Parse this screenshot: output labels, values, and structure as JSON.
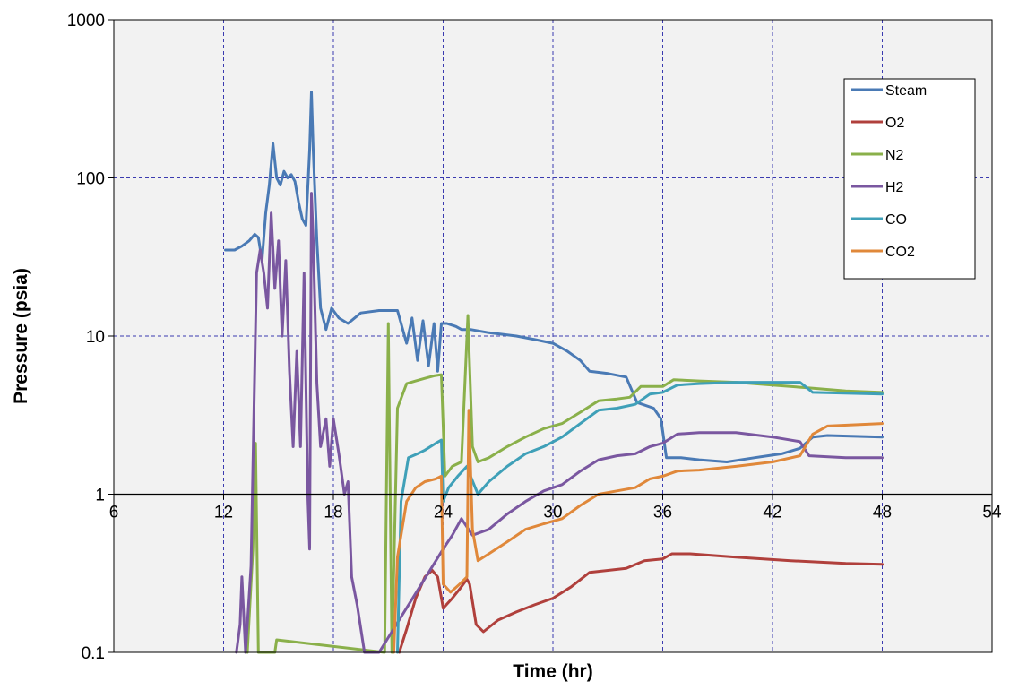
{
  "chart_data": {
    "type": "line",
    "title": "",
    "xlabel": "Time (hr)",
    "ylabel": "Pressure (psia)",
    "xlim": [
      6,
      54
    ],
    "ylim": [
      0.1,
      1000
    ],
    "yscale": "log",
    "x_ticks": [
      6,
      12,
      18,
      24,
      30,
      36,
      42,
      48,
      54
    ],
    "x_tick_labels": [
      "6",
      "12",
      "18",
      "24",
      "30",
      "36",
      "42",
      "48",
      "54"
    ],
    "y_ticks": [
      0.1,
      1,
      10,
      100,
      1000
    ],
    "y_tick_labels": [
      "0.1",
      "1",
      "10",
      "100",
      "1000"
    ],
    "grid": true,
    "x_axis_crosses_y": 1,
    "legend_position": "top-right",
    "plot_background": "#f2f2f2",
    "series": [
      {
        "name": "Steam",
        "color": "#4a7ab5",
        "points": [
          [
            12.1,
            35
          ],
          [
            12.6,
            35
          ],
          [
            13.0,
            37
          ],
          [
            13.4,
            40
          ],
          [
            13.7,
            44
          ],
          [
            13.9,
            42
          ],
          [
            14.1,
            30
          ],
          [
            14.3,
            60
          ],
          [
            14.5,
            90
          ],
          [
            14.7,
            165
          ],
          [
            14.9,
            100
          ],
          [
            15.1,
            90
          ],
          [
            15.3,
            110
          ],
          [
            15.5,
            100
          ],
          [
            15.7,
            105
          ],
          [
            15.9,
            95
          ],
          [
            16.1,
            70
          ],
          [
            16.3,
            55
          ],
          [
            16.5,
            50
          ],
          [
            16.7,
            150
          ],
          [
            16.8,
            350
          ],
          [
            16.9,
            150
          ],
          [
            17.1,
            40
          ],
          [
            17.3,
            15
          ],
          [
            17.6,
            11
          ],
          [
            17.9,
            15
          ],
          [
            18.3,
            13
          ],
          [
            18.8,
            12
          ],
          [
            19.5,
            14
          ],
          [
            20.5,
            14.5
          ],
          [
            21.5,
            14.5
          ],
          [
            22.0,
            9
          ],
          [
            22.3,
            13
          ],
          [
            22.6,
            7
          ],
          [
            22.9,
            12.5
          ],
          [
            23.2,
            6.5
          ],
          [
            23.5,
            12
          ],
          [
            23.7,
            6
          ],
          [
            23.9,
            12
          ],
          [
            24.2,
            12
          ],
          [
            24.7,
            11.5
          ],
          [
            25.0,
            11
          ],
          [
            25.5,
            11
          ],
          [
            26.5,
            10.5
          ],
          [
            28,
            10
          ],
          [
            29,
            9.5
          ],
          [
            30,
            9
          ],
          [
            30.8,
            8
          ],
          [
            31.5,
            7
          ],
          [
            32,
            6
          ],
          [
            33,
            5.8
          ],
          [
            34,
            5.5
          ],
          [
            34.6,
            3.8
          ],
          [
            35.5,
            3.5
          ],
          [
            35.9,
            3
          ],
          [
            36.2,
            1.7
          ],
          [
            37,
            1.7
          ],
          [
            38,
            1.65
          ],
          [
            39.5,
            1.6
          ],
          [
            41,
            1.7
          ],
          [
            42.5,
            1.8
          ],
          [
            43.5,
            1.95
          ],
          [
            44.2,
            2.3
          ],
          [
            45,
            2.35
          ],
          [
            48,
            2.3
          ]
        ]
      },
      {
        "name": "O2",
        "color": "#b0403c",
        "points": [
          [
            21.6,
            0.1
          ],
          [
            22,
            0.14
          ],
          [
            22.5,
            0.22
          ],
          [
            23,
            0.3
          ],
          [
            23.4,
            0.33
          ],
          [
            23.7,
            0.3
          ],
          [
            24,
            0.19
          ],
          [
            24.5,
            0.22
          ],
          [
            25,
            0.26
          ],
          [
            25.3,
            0.29
          ],
          [
            25.45,
            0.27
          ],
          [
            25.8,
            0.15
          ],
          [
            26.2,
            0.135
          ],
          [
            27,
            0.16
          ],
          [
            28,
            0.18
          ],
          [
            29,
            0.2
          ],
          [
            30,
            0.22
          ],
          [
            31,
            0.26
          ],
          [
            32,
            0.32
          ],
          [
            33,
            0.33
          ],
          [
            34,
            0.34
          ],
          [
            35,
            0.38
          ],
          [
            36,
            0.39
          ],
          [
            36.5,
            0.42
          ],
          [
            37.5,
            0.42
          ],
          [
            40,
            0.4
          ],
          [
            43,
            0.38
          ],
          [
            46,
            0.365
          ],
          [
            48,
            0.36
          ]
        ]
      },
      {
        "name": "N2",
        "color": "#8ab04a",
        "points": [
          [
            13.3,
            0.1
          ],
          [
            13.6,
            0.45
          ],
          [
            13.75,
            2.1
          ],
          [
            13.9,
            0.1
          ],
          [
            14.8,
            0.1
          ],
          [
            14.9,
            0.12
          ],
          [
            20.8,
            0.1
          ],
          [
            21.0,
            12
          ],
          [
            21.2,
            0.1
          ],
          [
            21.5,
            3.5
          ],
          [
            22,
            5
          ],
          [
            22.5,
            5.2
          ],
          [
            23,
            5.4
          ],
          [
            23.5,
            5.6
          ],
          [
            23.9,
            5.7
          ],
          [
            24.1,
            1.3
          ],
          [
            24.5,
            1.5
          ],
          [
            25,
            1.6
          ],
          [
            25.35,
            13.5
          ],
          [
            25.6,
            2
          ],
          [
            25.9,
            1.6
          ],
          [
            26.5,
            1.7
          ],
          [
            27.5,
            2
          ],
          [
            28.5,
            2.3
          ],
          [
            29.5,
            2.6
          ],
          [
            30.5,
            2.8
          ],
          [
            31.5,
            3.3
          ],
          [
            32.5,
            3.9
          ],
          [
            33.5,
            4
          ],
          [
            34.2,
            4.1
          ],
          [
            34.8,
            4.8
          ],
          [
            36,
            4.8
          ],
          [
            36.6,
            5.3
          ],
          [
            38,
            5.2
          ],
          [
            40,
            5.1
          ],
          [
            42,
            4.9
          ],
          [
            44,
            4.7
          ],
          [
            46,
            4.5
          ],
          [
            48,
            4.4
          ]
        ]
      },
      {
        "name": "H2",
        "color": "#7a57a0",
        "points": [
          [
            12.7,
            0.1
          ],
          [
            12.9,
            0.15
          ],
          [
            13.0,
            0.3
          ],
          [
            13.2,
            0.1
          ],
          [
            13.5,
            0.35
          ],
          [
            13.8,
            25
          ],
          [
            14.0,
            35
          ],
          [
            14.2,
            25
          ],
          [
            14.4,
            15
          ],
          [
            14.6,
            60
          ],
          [
            14.8,
            20
          ],
          [
            15.0,
            40
          ],
          [
            15.2,
            10
          ],
          [
            15.4,
            30
          ],
          [
            15.6,
            6
          ],
          [
            15.8,
            2
          ],
          [
            16.0,
            8
          ],
          [
            16.2,
            2
          ],
          [
            16.4,
            25
          ],
          [
            16.6,
            1
          ],
          [
            16.7,
            0.45
          ],
          [
            16.8,
            80
          ],
          [
            16.9,
            40
          ],
          [
            17.1,
            5
          ],
          [
            17.3,
            2
          ],
          [
            17.6,
            3
          ],
          [
            17.8,
            1.5
          ],
          [
            18.0,
            3
          ],
          [
            18.3,
            1.8
          ],
          [
            18.6,
            1
          ],
          [
            18.8,
            1.2
          ],
          [
            19.0,
            0.3
          ],
          [
            19.3,
            0.2
          ],
          [
            19.7,
            0.1
          ],
          [
            20.2,
            0.1
          ],
          [
            20.5,
            0.1
          ],
          [
            24.0,
            0.45
          ],
          [
            24.5,
            0.55
          ],
          [
            25,
            0.7
          ],
          [
            25.6,
            0.55
          ],
          [
            26.5,
            0.6
          ],
          [
            27.5,
            0.75
          ],
          [
            28.5,
            0.9
          ],
          [
            29.5,
            1.05
          ],
          [
            30.5,
            1.15
          ],
          [
            31.5,
            1.4
          ],
          [
            32.5,
            1.65
          ],
          [
            33.5,
            1.75
          ],
          [
            34.5,
            1.8
          ],
          [
            35.3,
            2.0
          ],
          [
            36,
            2.1
          ],
          [
            36.8,
            2.4
          ],
          [
            38,
            2.45
          ],
          [
            40,
            2.45
          ],
          [
            42,
            2.3
          ],
          [
            43.5,
            2.15
          ],
          [
            44,
            1.75
          ],
          [
            46,
            1.7
          ],
          [
            48,
            1.7
          ]
        ]
      },
      {
        "name": "CO",
        "color": "#3fa0b8",
        "points": [
          [
            21.5,
            0.1
          ],
          [
            21.7,
            0.9
          ],
          [
            22.1,
            1.7
          ],
          [
            22.6,
            1.8
          ],
          [
            23.0,
            1.9
          ],
          [
            23.6,
            2.1
          ],
          [
            23.9,
            2.2
          ],
          [
            24.0,
            0.9
          ],
          [
            24.3,
            1.1
          ],
          [
            24.8,
            1.3
          ],
          [
            25.3,
            1.5
          ],
          [
            25.5,
            1.3
          ],
          [
            25.9,
            1.0
          ],
          [
            26.5,
            1.2
          ],
          [
            27.5,
            1.5
          ],
          [
            28.5,
            1.8
          ],
          [
            29.5,
            2.0
          ],
          [
            30.5,
            2.3
          ],
          [
            31.5,
            2.8
          ],
          [
            32.5,
            3.4
          ],
          [
            33.5,
            3.5
          ],
          [
            34.5,
            3.7
          ],
          [
            35.3,
            4.3
          ],
          [
            36,
            4.4
          ],
          [
            36.8,
            4.9
          ],
          [
            38,
            5.0
          ],
          [
            40,
            5.1
          ],
          [
            43.5,
            5.1
          ],
          [
            44.2,
            4.4
          ],
          [
            48,
            4.3
          ]
        ]
      },
      {
        "name": "CO2",
        "color": "#e0883a",
        "points": [
          [
            21.3,
            0.1
          ],
          [
            21.5,
            0.4
          ],
          [
            22.0,
            0.9
          ],
          [
            22.5,
            1.1
          ],
          [
            23.0,
            1.2
          ],
          [
            23.6,
            1.25
          ],
          [
            23.9,
            1.3
          ],
          [
            24.0,
            0.27
          ],
          [
            24.4,
            0.24
          ],
          [
            24.9,
            0.27
          ],
          [
            25.3,
            0.3
          ],
          [
            25.4,
            3.4
          ],
          [
            25.6,
            0.6
          ],
          [
            25.9,
            0.38
          ],
          [
            26.5,
            0.42
          ],
          [
            27.5,
            0.5
          ],
          [
            28.5,
            0.6
          ],
          [
            29.5,
            0.65
          ],
          [
            30.5,
            0.7
          ],
          [
            31.5,
            0.85
          ],
          [
            32.5,
            1.0
          ],
          [
            33.5,
            1.05
          ],
          [
            34.5,
            1.1
          ],
          [
            35.3,
            1.25
          ],
          [
            36,
            1.3
          ],
          [
            36.8,
            1.4
          ],
          [
            38,
            1.42
          ],
          [
            40,
            1.5
          ],
          [
            42,
            1.6
          ],
          [
            43.5,
            1.75
          ],
          [
            44.2,
            2.4
          ],
          [
            45,
            2.7
          ],
          [
            48,
            2.8
          ]
        ]
      }
    ]
  }
}
